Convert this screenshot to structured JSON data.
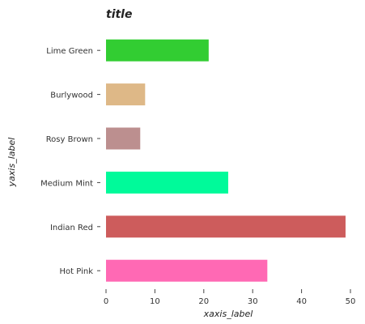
{
  "chart_data": {
    "type": "bar",
    "orientation": "horizontal",
    "title": "title",
    "xlabel": "xaxis_label",
    "ylabel": "yaxis_label",
    "categories": [
      "Hot Pink",
      "Indian Red",
      "Medium Mint",
      "Rosy Brown",
      "Burlywood",
      "Lime Green"
    ],
    "values": [
      33,
      49,
      25,
      7,
      8,
      21
    ],
    "colors": [
      "#ff69b4",
      "#cd5c5c",
      "#00fa9a",
      "#bc8f8f",
      "#deb887",
      "#32cd32"
    ],
    "xlim": [
      0,
      50
    ],
    "xticks": [
      0,
      10,
      20,
      30,
      40,
      50
    ],
    "grid": false,
    "background": "#ffffff"
  }
}
